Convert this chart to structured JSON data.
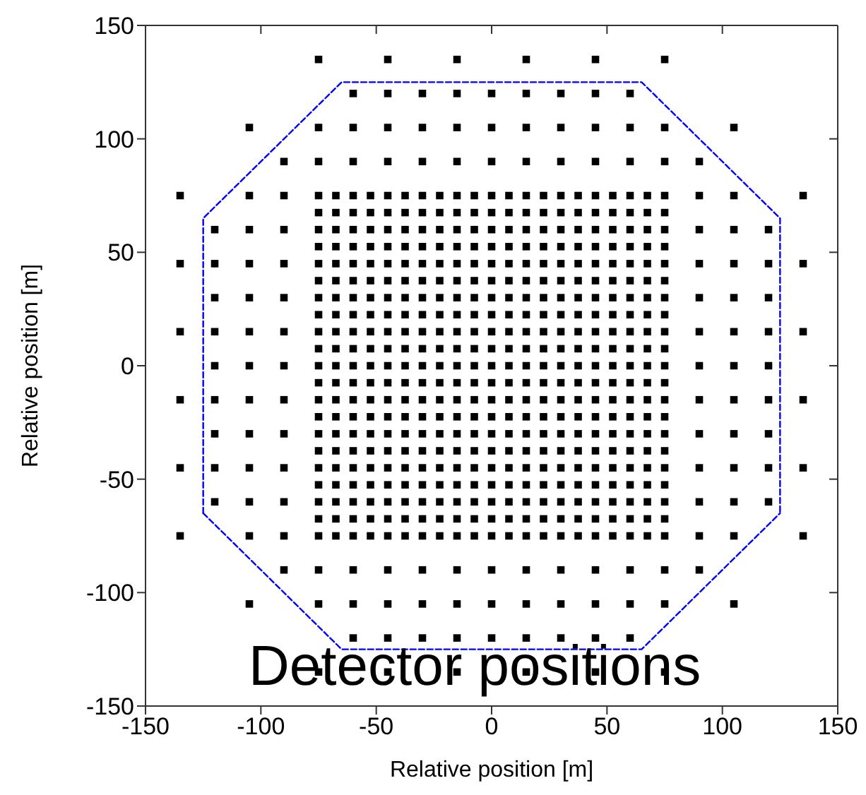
{
  "chart_data": {
    "type": "scatter",
    "xlabel": "Relative position [m]",
    "ylabel": "Relative position [m]",
    "annotations": [
      "Detector positions"
    ],
    "marker": "square",
    "xlim": [
      -150,
      150
    ],
    "ylim": [
      -150,
      150
    ],
    "xticks": [
      -150,
      -100,
      -50,
      0,
      50,
      100,
      150
    ],
    "yticks": [
      -150,
      -100,
      -50,
      0,
      50,
      100,
      150
    ],
    "series": [
      {
        "color": "#000000",
        "x": [
          -75,
          -45,
          -15,
          15,
          45,
          75
        ],
        "values": [
          135,
          135,
          135,
          135,
          135,
          135
        ]
      },
      {
        "color": "#000000",
        "x": [
          -60,
          -45,
          -30,
          -15,
          0,
          15,
          30,
          45,
          60
        ],
        "values": [
          120,
          120,
          120,
          120,
          120,
          120,
          120,
          120,
          120
        ]
      },
      {
        "color": "#000000",
        "x": [
          -105,
          -75,
          -60,
          -45,
          -30,
          -15,
          0,
          15,
          30,
          45,
          60,
          75,
          105
        ],
        "values": [
          105,
          105,
          105,
          105,
          105,
          105,
          105,
          105,
          105,
          105,
          105,
          105,
          105
        ]
      },
      {
        "color": "#000000",
        "x": [
          -90,
          -75,
          -60,
          -45,
          -30,
          -15,
          0,
          15,
          30,
          45,
          60,
          75,
          90
        ],
        "values": [
          90,
          90,
          90,
          90,
          90,
          90,
          90,
          90,
          90,
          90,
          90,
          90,
          90
        ]
      },
      {
        "color": "#000000",
        "x": [
          -135,
          -105,
          -90,
          -75,
          -67.5,
          -60,
          -52.5,
          -45,
          -37.5,
          -30,
          -22.5,
          -15,
          -7.5,
          0,
          7.5,
          15,
          22.5,
          30,
          37.5,
          45,
          52.5,
          60,
          67.5,
          75,
          90,
          105,
          135
        ],
        "values": [
          75,
          75,
          75,
          75,
          75,
          75,
          75,
          75,
          75,
          75,
          75,
          75,
          75,
          75,
          75,
          75,
          75,
          75,
          75,
          75,
          75,
          75,
          75,
          75,
          75,
          75,
          75
        ]
      },
      {
        "color": "#000000",
        "x": [
          -75,
          -67.5,
          -60,
          -52.5,
          -45,
          -37.5,
          -30,
          -22.5,
          -15,
          -7.5,
          0,
          7.5,
          15,
          22.5,
          30,
          37.5,
          45,
          52.5,
          60,
          67.5,
          75
        ],
        "values": [
          67.5,
          67.5,
          67.5,
          67.5,
          67.5,
          67.5,
          67.5,
          67.5,
          67.5,
          67.5,
          67.5,
          67.5,
          67.5,
          67.5,
          67.5,
          67.5,
          67.5,
          67.5,
          67.5,
          67.5,
          67.5
        ]
      },
      {
        "color": "#000000",
        "x": [
          -120,
          -105,
          -90,
          -75,
          -67.5,
          -60,
          -52.5,
          -45,
          -37.5,
          -30,
          -22.5,
          -15,
          -7.5,
          0,
          7.5,
          15,
          22.5,
          30,
          37.5,
          45,
          52.5,
          60,
          67.5,
          75,
          90,
          105,
          120
        ],
        "values": [
          60,
          60,
          60,
          60,
          60,
          60,
          60,
          60,
          60,
          60,
          60,
          60,
          60,
          60,
          60,
          60,
          60,
          60,
          60,
          60,
          60,
          60,
          60,
          60,
          60,
          60,
          60
        ]
      },
      {
        "color": "#000000",
        "x": [
          -75,
          -67.5,
          -60,
          -52.5,
          -45,
          -37.5,
          -30,
          -22.5,
          -15,
          -7.5,
          0,
          7.5,
          15,
          22.5,
          30,
          37.5,
          45,
          52.5,
          60,
          67.5,
          75
        ],
        "values": [
          52.5,
          52.5,
          52.5,
          52.5,
          52.5,
          52.5,
          52.5,
          52.5,
          52.5,
          52.5,
          52.5,
          52.5,
          52.5,
          52.5,
          52.5,
          52.5,
          52.5,
          52.5,
          52.5,
          52.5,
          52.5
        ]
      },
      {
        "color": "#000000",
        "x": [
          -135,
          -120,
          -105,
          -90,
          -75,
          -67.5,
          -60,
          -52.5,
          -45,
          -37.5,
          -30,
          -22.5,
          -15,
          -7.5,
          0,
          7.5,
          15,
          22.5,
          30,
          37.5,
          45,
          52.5,
          60,
          67.5,
          75,
          90,
          105,
          120,
          135
        ],
        "values": [
          45,
          45,
          45,
          45,
          45,
          45,
          45,
          45,
          45,
          45,
          45,
          45,
          45,
          45,
          45,
          45,
          45,
          45,
          45,
          45,
          45,
          45,
          45,
          45,
          45,
          45,
          45,
          45,
          45
        ]
      },
      {
        "color": "#000000",
        "x": [
          -75,
          -67.5,
          -60,
          -52.5,
          -45,
          -37.5,
          -30,
          -22.5,
          -15,
          -7.5,
          0,
          7.5,
          15,
          22.5,
          30,
          37.5,
          45,
          52.5,
          60,
          67.5,
          75
        ],
        "values": [
          37.5,
          37.5,
          37.5,
          37.5,
          37.5,
          37.5,
          37.5,
          37.5,
          37.5,
          37.5,
          37.5,
          37.5,
          37.5,
          37.5,
          37.5,
          37.5,
          37.5,
          37.5,
          37.5,
          37.5,
          37.5
        ]
      },
      {
        "color": "#000000",
        "x": [
          -120,
          -105,
          -90,
          -75,
          -67.5,
          -60,
          -52.5,
          -45,
          -37.5,
          -30,
          -22.5,
          -15,
          -7.5,
          0,
          7.5,
          15,
          22.5,
          30,
          37.5,
          45,
          52.5,
          60,
          67.5,
          75,
          90,
          105,
          120
        ],
        "values": [
          30,
          30,
          30,
          30,
          30,
          30,
          30,
          30,
          30,
          30,
          30,
          30,
          30,
          30,
          30,
          30,
          30,
          30,
          30,
          30,
          30,
          30,
          30,
          30,
          30,
          30,
          30
        ]
      },
      {
        "color": "#000000",
        "x": [
          -75,
          -67.5,
          -60,
          -52.5,
          -45,
          -37.5,
          -30,
          -22.5,
          -15,
          -7.5,
          0,
          7.5,
          15,
          22.5,
          30,
          37.5,
          45,
          52.5,
          60,
          67.5,
          75
        ],
        "values": [
          22.5,
          22.5,
          22.5,
          22.5,
          22.5,
          22.5,
          22.5,
          22.5,
          22.5,
          22.5,
          22.5,
          22.5,
          22.5,
          22.5,
          22.5,
          22.5,
          22.5,
          22.5,
          22.5,
          22.5,
          22.5
        ]
      },
      {
        "color": "#000000",
        "x": [
          -135,
          -120,
          -105,
          -90,
          -75,
          -67.5,
          -60,
          -52.5,
          -45,
          -37.5,
          -30,
          -22.5,
          -15,
          -7.5,
          0,
          7.5,
          15,
          22.5,
          30,
          37.5,
          45,
          52.5,
          60,
          67.5,
          75,
          90,
          105,
          120,
          135
        ],
        "values": [
          15,
          15,
          15,
          15,
          15,
          15,
          15,
          15,
          15,
          15,
          15,
          15,
          15,
          15,
          15,
          15,
          15,
          15,
          15,
          15,
          15,
          15,
          15,
          15,
          15,
          15,
          15,
          15,
          15
        ]
      },
      {
        "color": "#000000",
        "x": [
          -75,
          -67.5,
          -60,
          -52.5,
          -45,
          -37.5,
          -30,
          -22.5,
          -15,
          -7.5,
          0,
          7.5,
          15,
          22.5,
          30,
          37.5,
          45,
          52.5,
          60,
          67.5,
          75
        ],
        "values": [
          7.5,
          7.5,
          7.5,
          7.5,
          7.5,
          7.5,
          7.5,
          7.5,
          7.5,
          7.5,
          7.5,
          7.5,
          7.5,
          7.5,
          7.5,
          7.5,
          7.5,
          7.5,
          7.5,
          7.5,
          7.5
        ]
      },
      {
        "color": "#000000",
        "x": [
          -120,
          -105,
          -90,
          -75,
          -67.5,
          -60,
          -52.5,
          -45,
          -37.5,
          -30,
          -22.5,
          -15,
          -7.5,
          0,
          7.5,
          15,
          22.5,
          30,
          37.5,
          45,
          52.5,
          60,
          67.5,
          75,
          90,
          105,
          120
        ],
        "values": [
          0,
          0,
          0,
          0,
          0,
          0,
          0,
          0,
          0,
          0,
          0,
          0,
          0,
          0,
          0,
          0,
          0,
          0,
          0,
          0,
          0,
          0,
          0,
          0,
          0,
          0,
          0
        ]
      },
      {
        "color": "#000000",
        "x": [
          -75,
          -67.5,
          -60,
          -52.5,
          -45,
          -37.5,
          -30,
          -22.5,
          -15,
          -7.5,
          0,
          7.5,
          15,
          22.5,
          30,
          37.5,
          45,
          52.5,
          60,
          67.5,
          75
        ],
        "values": [
          -7.5,
          -7.5,
          -7.5,
          -7.5,
          -7.5,
          -7.5,
          -7.5,
          -7.5,
          -7.5,
          -7.5,
          -7.5,
          -7.5,
          -7.5,
          -7.5,
          -7.5,
          -7.5,
          -7.5,
          -7.5,
          -7.5,
          -7.5,
          -7.5
        ]
      },
      {
        "color": "#000000",
        "x": [
          -135,
          -120,
          -105,
          -90,
          -75,
          -67.5,
          -60,
          -52.5,
          -45,
          -37.5,
          -30,
          -22.5,
          -15,
          -7.5,
          0,
          7.5,
          15,
          22.5,
          30,
          37.5,
          45,
          52.5,
          60,
          67.5,
          75,
          90,
          105,
          120,
          135
        ],
        "values": [
          -15,
          -15,
          -15,
          -15,
          -15,
          -15,
          -15,
          -15,
          -15,
          -15,
          -15,
          -15,
          -15,
          -15,
          -15,
          -15,
          -15,
          -15,
          -15,
          -15,
          -15,
          -15,
          -15,
          -15,
          -15,
          -15,
          -15,
          -15,
          -15
        ]
      },
      {
        "color": "#000000",
        "x": [
          -75,
          -67.5,
          -60,
          -52.5,
          -45,
          -37.5,
          -30,
          -22.5,
          -15,
          -7.5,
          0,
          7.5,
          15,
          22.5,
          30,
          37.5,
          45,
          52.5,
          60,
          67.5,
          75
        ],
        "values": [
          -22.5,
          -22.5,
          -22.5,
          -22.5,
          -22.5,
          -22.5,
          -22.5,
          -22.5,
          -22.5,
          -22.5,
          -22.5,
          -22.5,
          -22.5,
          -22.5,
          -22.5,
          -22.5,
          -22.5,
          -22.5,
          -22.5,
          -22.5,
          -22.5
        ]
      },
      {
        "color": "#000000",
        "x": [
          -120,
          -105,
          -90,
          -75,
          -67.5,
          -60,
          -52.5,
          -45,
          -37.5,
          -30,
          -22.5,
          -15,
          -7.5,
          0,
          7.5,
          15,
          22.5,
          30,
          37.5,
          45,
          52.5,
          60,
          67.5,
          75,
          90,
          105,
          120
        ],
        "values": [
          -30,
          -30,
          -30,
          -30,
          -30,
          -30,
          -30,
          -30,
          -30,
          -30,
          -30,
          -30,
          -30,
          -30,
          -30,
          -30,
          -30,
          -30,
          -30,
          -30,
          -30,
          -30,
          -30,
          -30,
          -30,
          -30,
          -30
        ]
      },
      {
        "color": "#000000",
        "x": [
          -75,
          -67.5,
          -60,
          -52.5,
          -45,
          -37.5,
          -30,
          -22.5,
          -15,
          -7.5,
          0,
          7.5,
          15,
          22.5,
          30,
          37.5,
          45,
          52.5,
          60,
          67.5,
          75
        ],
        "values": [
          -37.5,
          -37.5,
          -37.5,
          -37.5,
          -37.5,
          -37.5,
          -37.5,
          -37.5,
          -37.5,
          -37.5,
          -37.5,
          -37.5,
          -37.5,
          -37.5,
          -37.5,
          -37.5,
          -37.5,
          -37.5,
          -37.5,
          -37.5,
          -37.5
        ]
      },
      {
        "color": "#000000",
        "x": [
          -135,
          -120,
          -105,
          -90,
          -75,
          -67.5,
          -60,
          -52.5,
          -45,
          -37.5,
          -30,
          -22.5,
          -15,
          -7.5,
          0,
          7.5,
          15,
          22.5,
          30,
          37.5,
          45,
          52.5,
          60,
          67.5,
          75,
          90,
          105,
          120,
          135
        ],
        "values": [
          -45,
          -45,
          -45,
          -45,
          -45,
          -45,
          -45,
          -45,
          -45,
          -45,
          -45,
          -45,
          -45,
          -45,
          -45,
          -45,
          -45,
          -45,
          -45,
          -45,
          -45,
          -45,
          -45,
          -45,
          -45,
          -45,
          -45,
          -45,
          -45
        ]
      },
      {
        "color": "#000000",
        "x": [
          -75,
          -67.5,
          -60,
          -52.5,
          -45,
          -37.5,
          -30,
          -22.5,
          -15,
          -7.5,
          0,
          7.5,
          15,
          22.5,
          30,
          37.5,
          45,
          52.5,
          60,
          67.5,
          75
        ],
        "values": [
          -52.5,
          -52.5,
          -52.5,
          -52.5,
          -52.5,
          -52.5,
          -52.5,
          -52.5,
          -52.5,
          -52.5,
          -52.5,
          -52.5,
          -52.5,
          -52.5,
          -52.5,
          -52.5,
          -52.5,
          -52.5,
          -52.5,
          -52.5,
          -52.5
        ]
      },
      {
        "color": "#000000",
        "x": [
          -120,
          -105,
          -90,
          -75,
          -67.5,
          -60,
          -52.5,
          -45,
          -37.5,
          -30,
          -22.5,
          -15,
          -7.5,
          0,
          7.5,
          15,
          22.5,
          30,
          37.5,
          45,
          52.5,
          60,
          67.5,
          75,
          90,
          105,
          120
        ],
        "values": [
          -60,
          -60,
          -60,
          -60,
          -60,
          -60,
          -60,
          -60,
          -60,
          -60,
          -60,
          -60,
          -60,
          -60,
          -60,
          -60,
          -60,
          -60,
          -60,
          -60,
          -60,
          -60,
          -60,
          -60,
          -60,
          -60,
          -60
        ]
      },
      {
        "color": "#000000",
        "x": [
          -75,
          -67.5,
          -60,
          -52.5,
          -45,
          -37.5,
          -30,
          -22.5,
          -15,
          -7.5,
          0,
          7.5,
          15,
          22.5,
          30,
          37.5,
          45,
          52.5,
          60,
          67.5,
          75
        ],
        "values": [
          -67.5,
          -67.5,
          -67.5,
          -67.5,
          -67.5,
          -67.5,
          -67.5,
          -67.5,
          -67.5,
          -67.5,
          -67.5,
          -67.5,
          -67.5,
          -67.5,
          -67.5,
          -67.5,
          -67.5,
          -67.5,
          -67.5,
          -67.5,
          -67.5
        ]
      },
      {
        "color": "#000000",
        "x": [
          -135,
          -105,
          -90,
          -75,
          -67.5,
          -60,
          -52.5,
          -45,
          -37.5,
          -30,
          -22.5,
          -15,
          -7.5,
          0,
          7.5,
          15,
          22.5,
          30,
          37.5,
          45,
          52.5,
          60,
          67.5,
          75,
          90,
          105,
          135
        ],
        "values": [
          -75,
          -75,
          -75,
          -75,
          -75,
          -75,
          -75,
          -75,
          -75,
          -75,
          -75,
          -75,
          -75,
          -75,
          -75,
          -75,
          -75,
          -75,
          -75,
          -75,
          -75,
          -75,
          -75,
          -75,
          -75,
          -75,
          -75
        ]
      },
      {
        "color": "#000000",
        "x": [
          -90,
          -75,
          -60,
          -45,
          -30,
          -15,
          0,
          15,
          30,
          45,
          60,
          75,
          90
        ],
        "values": [
          -90,
          -90,
          -90,
          -90,
          -90,
          -90,
          -90,
          -90,
          -90,
          -90,
          -90,
          -90,
          -90
        ]
      },
      {
        "color": "#000000",
        "x": [
          -105,
          -75,
          -60,
          -45,
          -30,
          -15,
          0,
          15,
          30,
          45,
          60,
          75,
          105
        ],
        "values": [
          -105,
          -105,
          -105,
          -105,
          -105,
          -105,
          -105,
          -105,
          -105,
          -105,
          -105,
          -105,
          -105
        ]
      },
      {
        "color": "#000000",
        "x": [
          -60,
          -45,
          -30,
          -15,
          0,
          15,
          30,
          45,
          60
        ],
        "values": [
          -120,
          -120,
          -120,
          -120,
          -120,
          -120,
          -120,
          -120,
          -120
        ]
      },
      {
        "color": "#000000",
        "x": [
          -75,
          -45,
          -15,
          15,
          45,
          75
        ],
        "values": [
          -135,
          -135,
          -135,
          -135,
          -135,
          -135
        ]
      },
      {
        "type": "line",
        "color": "#0000ff",
        "line_style": "dashed",
        "marker": "none",
        "x": [
          -125,
          -125,
          -65,
          65,
          125,
          125
        ],
        "values": [
          -65,
          65,
          125,
          125,
          65,
          -65
        ]
      },
      {
        "type": "line",
        "color": "#0000ff",
        "line_style": "dashed",
        "marker": "none",
        "x": [
          -125,
          -65,
          65,
          125
        ],
        "values": [
          -65,
          -125,
          -125,
          -65
        ]
      }
    ]
  }
}
